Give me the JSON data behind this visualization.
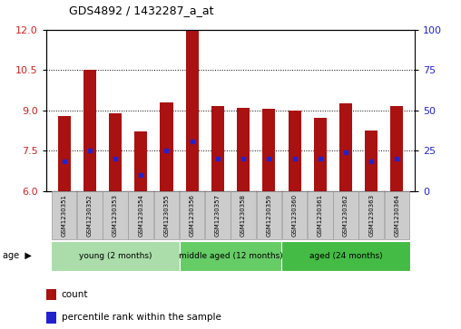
{
  "title": "GDS4892 / 1432287_a_at",
  "samples": [
    "GSM1230351",
    "GSM1230352",
    "GSM1230353",
    "GSM1230354",
    "GSM1230355",
    "GSM1230356",
    "GSM1230357",
    "GSM1230358",
    "GSM1230359",
    "GSM1230360",
    "GSM1230361",
    "GSM1230362",
    "GSM1230363",
    "GSM1230364"
  ],
  "bar_values": [
    8.8,
    10.5,
    8.9,
    8.2,
    9.3,
    12.0,
    9.15,
    9.1,
    9.05,
    9.0,
    8.7,
    9.25,
    8.25,
    9.15
  ],
  "percentile_values": [
    7.1,
    7.5,
    7.2,
    6.6,
    7.5,
    7.85,
    7.2,
    7.2,
    7.2,
    7.2,
    7.2,
    7.45,
    7.1,
    7.2
  ],
  "bar_color": "#aa1111",
  "percentile_color": "#2222cc",
  "ylim_left": [
    6,
    12
  ],
  "ylim_right": [
    0,
    100
  ],
  "yticks_left": [
    6,
    7.5,
    9,
    10.5,
    12
  ],
  "yticks_right": [
    0,
    25,
    50,
    75,
    100
  ],
  "groups": [
    {
      "label": "young (2 months)",
      "start": 0,
      "end": 5,
      "color": "#aaddaa"
    },
    {
      "label": "middle aged (12 months)",
      "start": 5,
      "end": 9,
      "color": "#66cc66"
    },
    {
      "label": "aged (24 months)",
      "start": 9,
      "end": 14,
      "color": "#44bb44"
    }
  ],
  "legend_count_label": "count",
  "legend_percentile_label": "percentile rank within the sample",
  "bar_width": 0.5,
  "background_color": "#ffffff",
  "tick_label_color_left": "#cc2222",
  "tick_label_color_right": "#2222cc",
  "sample_box_color": "#cccccc",
  "sample_box_edge": "#999999"
}
